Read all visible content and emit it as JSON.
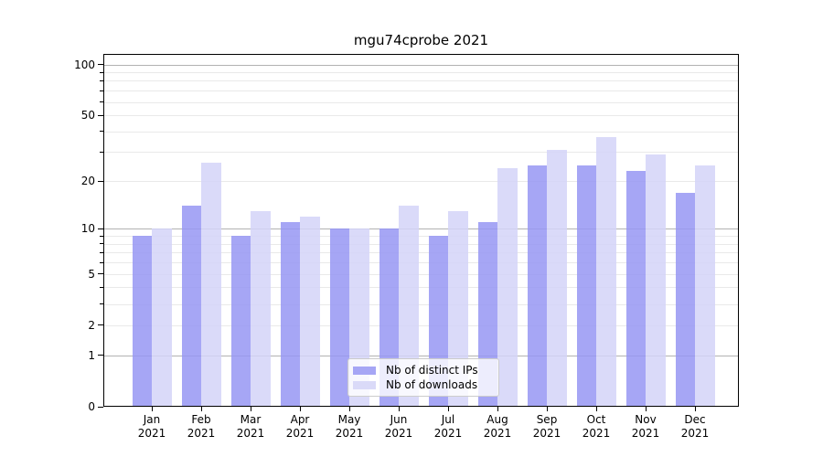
{
  "chart_data": {
    "type": "bar",
    "title": "mgu74cprobe 2021",
    "scale": "log10(1+x)",
    "categories": [
      "Jan",
      "Feb",
      "Mar",
      "Apr",
      "May",
      "Jun",
      "Jul",
      "Aug",
      "Sep",
      "Oct",
      "Nov",
      "Dec"
    ],
    "category_year": "2021",
    "series": [
      {
        "name": "Nb of distinct IPs",
        "color": "#9696f3",
        "values": [
          9,
          14,
          9,
          11,
          10,
          10,
          9,
          11,
          25,
          25,
          23,
          17
        ]
      },
      {
        "name": "Nb of downloads",
        "color": "#d3d3f8",
        "values": [
          10,
          26,
          13,
          12,
          10,
          14,
          13,
          24,
          31,
          37,
          29,
          25
        ]
      }
    ],
    "yticks": [
      0,
      1,
      2,
      5,
      10,
      20,
      50,
      100
    ],
    "grid_major": [
      1,
      10,
      100
    ],
    "grid_minor": [
      2,
      3,
      4,
      5,
      6,
      7,
      8,
      9,
      20,
      30,
      40,
      50,
      60,
      70,
      80,
      90
    ],
    "ylim": [
      0,
      115
    ],
    "grid": true,
    "legend": {
      "position": "lower center",
      "labels": [
        "Nb of distinct IPs",
        "Nb of downloads"
      ]
    },
    "colors": {
      "bar_ips": "#a6a6f5",
      "bar_downloads": "#dadaf8",
      "grid_major": "#b2b2b2",
      "grid_minor": "#e9e9e9",
      "axis": "#000000",
      "legend_border": "#cccccc"
    }
  }
}
